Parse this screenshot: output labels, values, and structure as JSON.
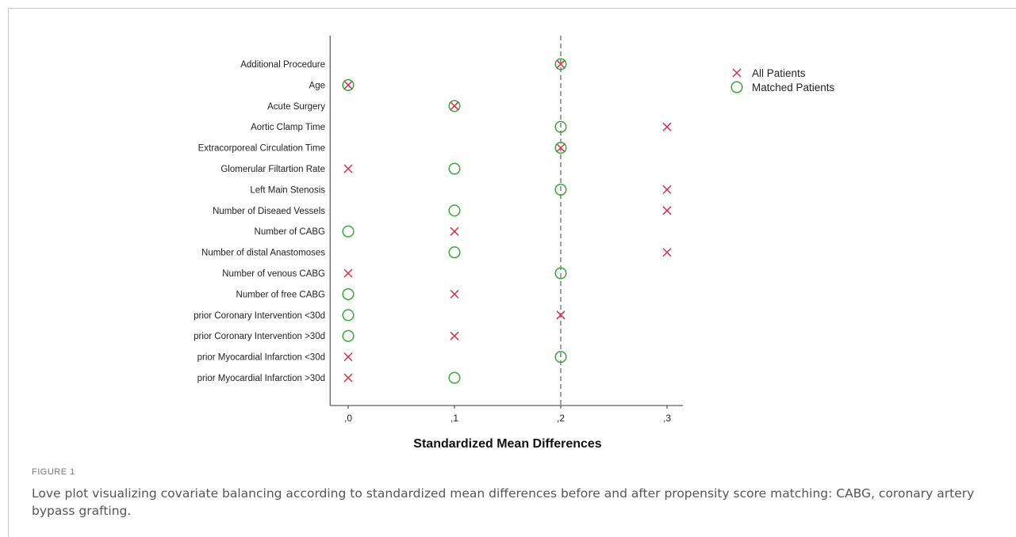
{
  "figure": {
    "label": "FIGURE 1",
    "caption": "Love plot visualizing covariate balancing according to standardized mean differences before and after propensity score matching: CABG, coronary artery bypass grafting."
  },
  "chart_data": {
    "type": "scatter",
    "xlabel": "Standardized Mean Differences",
    "ylabel": "",
    "xlim": [
      -0.017,
      0.315
    ],
    "x_ticks": [
      0,
      0.1,
      0.2,
      0.3
    ],
    "x_tick_labels": [
      ",0",
      ",1",
      ",2",
      ",3"
    ],
    "reference_line": 0.2,
    "legend_position": "top-right",
    "categories": [
      "Additional Procedure",
      "Age",
      "Acute Surgery",
      "Aortic Clamp Time",
      "Extracorporeal Circulation Time",
      "Glomerular Filtartion Rate",
      "Left Main Stenosis",
      "Number of Diseaed Vessels",
      "Number of CABG",
      "Number of distal Anastomoses",
      "Number of venous CABG",
      "Number of free CABG",
      "prior Coronary Intervention <30d",
      "prior Coronary Intervention >30d",
      "prior Myocardial Infarction <30d",
      "prior Myocardial Infarction >30d"
    ],
    "series": [
      {
        "name": "All Patients",
        "marker": "x",
        "color": "#d6304a",
        "values": [
          0.2,
          0.0,
          0.1,
          0.3,
          0.2,
          0.0,
          0.3,
          0.3,
          0.1,
          0.3,
          0.0,
          0.1,
          0.2,
          0.1,
          0.0,
          0.0
        ]
      },
      {
        "name": "Matched Patients",
        "marker": "circle",
        "color": "#3aa83a",
        "values": [
          0.2,
          0.0,
          0.1,
          0.2,
          0.2,
          0.1,
          0.2,
          0.1,
          0.0,
          0.1,
          0.2,
          0.0,
          0.0,
          0.0,
          0.2,
          0.1
        ]
      }
    ]
  }
}
